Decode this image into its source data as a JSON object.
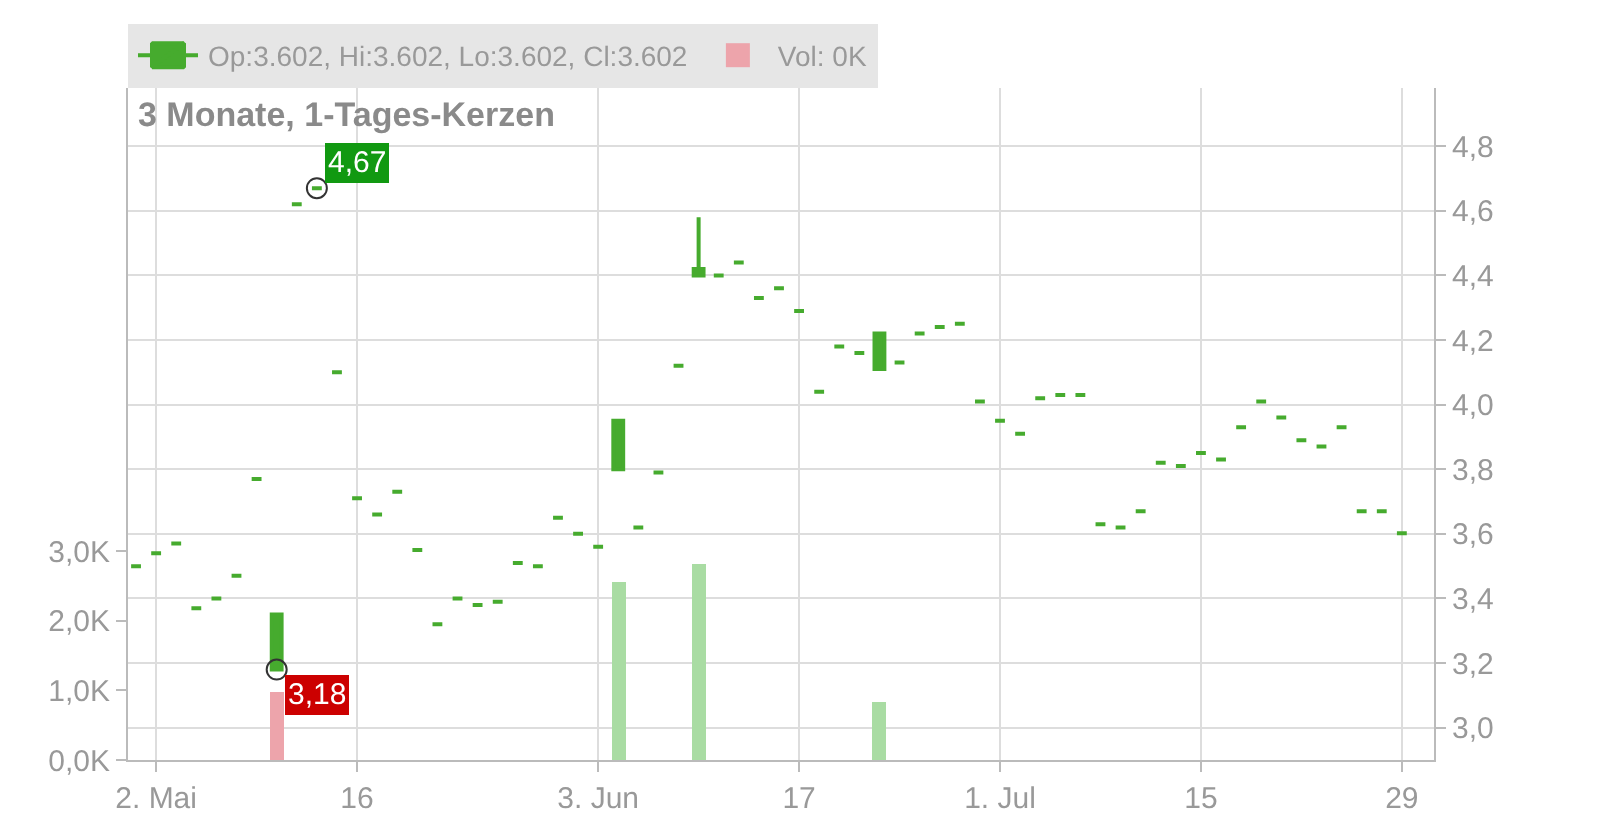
{
  "chart_data": {
    "type": "candlestick",
    "title": "3 Monate, 1-Tages-Kerzen",
    "categories": [
      null,
      "2. Mai",
      null,
      null,
      null,
      null,
      null,
      null,
      null,
      null,
      null,
      "16",
      null,
      null,
      null,
      null,
      null,
      null,
      null,
      null,
      null,
      null,
      null,
      "3. Jun",
      null,
      null,
      null,
      null,
      null,
      null,
      null,
      null,
      null,
      "17",
      null,
      null,
      null,
      null,
      null,
      null,
      null,
      null,
      null,
      "1. Jul",
      null,
      null,
      null,
      null,
      null,
      null,
      null,
      null,
      null,
      "15",
      null,
      null,
      null,
      null,
      null,
      null,
      null,
      null,
      null,
      "29"
    ],
    "series": [
      {
        "axis": "y2",
        "name": "Op:3.602, Hi:3.602, Lo:3.602, Cl:3.602",
        "color": "#46ab2e",
        "ohlc": [
          [
            3.5,
            3.5,
            3.5,
            3.5
          ],
          [
            3.54,
            3.54,
            3.54,
            3.54
          ],
          [
            3.57,
            3.57,
            3.57,
            3.57
          ],
          [
            3.37,
            3.37,
            3.37,
            3.37
          ],
          [
            3.4,
            3.4,
            3.4,
            3.4
          ],
          [
            3.47,
            3.47,
            3.47,
            3.47
          ],
          [
            3.77,
            3.77,
            3.77,
            3.77
          ],
          [
            3.18,
            3.35,
            3.18,
            3.35
          ],
          [
            4.62,
            4.62,
            4.62,
            4.62
          ],
          [
            4.67,
            4.67,
            4.67,
            4.67
          ],
          [
            4.1,
            4.1,
            4.1,
            4.1
          ],
          [
            3.71,
            3.71,
            3.71,
            3.71
          ],
          [
            3.66,
            3.66,
            3.66,
            3.66
          ],
          [
            3.73,
            3.73,
            3.73,
            3.73
          ],
          [
            3.55,
            3.55,
            3.55,
            3.55
          ],
          [
            3.32,
            3.32,
            3.32,
            3.32
          ],
          [
            3.4,
            3.4,
            3.4,
            3.4
          ],
          [
            3.38,
            3.38,
            3.38,
            3.38
          ],
          [
            3.39,
            3.39,
            3.39,
            3.39
          ],
          [
            3.51,
            3.51,
            3.51,
            3.51
          ],
          [
            3.5,
            3.5,
            3.5,
            3.5
          ],
          [
            3.65,
            3.65,
            3.65,
            3.65
          ],
          [
            3.6,
            3.6,
            3.6,
            3.6
          ],
          [
            3.56,
            3.56,
            3.56,
            3.56
          ],
          [
            3.8,
            3.95,
            3.8,
            3.95
          ],
          [
            3.62,
            3.62,
            3.62,
            3.62
          ],
          [
            3.79,
            3.79,
            3.79,
            3.79
          ],
          [
            4.12,
            4.12,
            4.12,
            4.12
          ],
          [
            4.4,
            4.58,
            4.4,
            4.42
          ],
          [
            4.4,
            4.4,
            4.4,
            4.4
          ],
          [
            4.44,
            4.44,
            4.44,
            4.44
          ],
          [
            4.33,
            4.33,
            4.33,
            4.33
          ],
          [
            4.36,
            4.36,
            4.36,
            4.36
          ],
          [
            4.29,
            4.29,
            4.29,
            4.29
          ],
          [
            4.04,
            4.04,
            4.04,
            4.04
          ],
          [
            4.18,
            4.18,
            4.18,
            4.18
          ],
          [
            4.16,
            4.16,
            4.16,
            4.16
          ],
          [
            4.11,
            4.22,
            4.11,
            4.22
          ],
          [
            4.13,
            4.13,
            4.13,
            4.13
          ],
          [
            4.22,
            4.22,
            4.22,
            4.22
          ],
          [
            4.24,
            4.24,
            4.24,
            4.24
          ],
          [
            4.25,
            4.25,
            4.25,
            4.25
          ],
          [
            4.01,
            4.01,
            4.01,
            4.01
          ],
          [
            3.95,
            3.95,
            3.95,
            3.95
          ],
          [
            3.91,
            3.91,
            3.91,
            3.91
          ],
          [
            4.02,
            4.02,
            4.02,
            4.02
          ],
          [
            4.03,
            4.03,
            4.03,
            4.03
          ],
          [
            4.03,
            4.03,
            4.03,
            4.03
          ],
          [
            3.63,
            3.63,
            3.63,
            3.63
          ],
          [
            3.62,
            3.62,
            3.62,
            3.62
          ],
          [
            3.67,
            3.67,
            3.67,
            3.67
          ],
          [
            3.82,
            3.82,
            3.82,
            3.82
          ],
          [
            3.81,
            3.81,
            3.81,
            3.81
          ],
          [
            3.85,
            3.85,
            3.85,
            3.85
          ],
          [
            3.83,
            3.83,
            3.83,
            3.83
          ],
          [
            3.93,
            3.93,
            3.93,
            3.93
          ],
          [
            4.01,
            4.01,
            4.01,
            4.01
          ],
          [
            3.96,
            3.96,
            3.96,
            3.96
          ],
          [
            3.89,
            3.89,
            3.89,
            3.89
          ],
          [
            3.87,
            3.87,
            3.87,
            3.87
          ],
          [
            3.93,
            3.93,
            3.93,
            3.93
          ],
          [
            3.67,
            3.67,
            3.67,
            3.67
          ],
          [
            3.67,
            3.67,
            3.67,
            3.67
          ],
          [
            3.602,
            3.602,
            3.602,
            3.602
          ]
        ]
      },
      {
        "type": "bar",
        "name": "Vol: 0K",
        "values": [
          null,
          null,
          null,
          null,
          null,
          null,
          null,
          970,
          null,
          null,
          null,
          null,
          null,
          null,
          null,
          null,
          null,
          null,
          null,
          null,
          null,
          null,
          null,
          null,
          2570,
          null,
          null,
          null,
          2810,
          null,
          null,
          null,
          null,
          null,
          null,
          null,
          null,
          840,
          null,
          null,
          null,
          null,
          null,
          null,
          null,
          null,
          null,
          null,
          null,
          null,
          null,
          null,
          null,
          null,
          null,
          null,
          null,
          null,
          null,
          null,
          null,
          null,
          null,
          null
        ],
        "colors": [
          "#eda4ab",
          "#eda4ab",
          "#eda4ab",
          "#eda4ab",
          "#eda4ab",
          "#eda4ab",
          "#eda4ab",
          "#eda4ab",
          "#a9dca3",
          "#a9dca3",
          "#a9dca3",
          "#a9dca3",
          "#a9dca3",
          "#a9dca3",
          "#a9dca3",
          "#a9dca3",
          "#a9dca3",
          "#a9dca3",
          "#a9dca3",
          "#a9dca3",
          "#a9dca3",
          "#a9dca3",
          "#a9dca3",
          "#a9dca3",
          "#a9dca3",
          "#a9dca3",
          "#a9dca3",
          "#a9dca3",
          "#a9dca3",
          "#a9dca3",
          "#a9dca3",
          "#a9dca3",
          "#a9dca3",
          "#a9dca3",
          "#a9dca3",
          "#a9dca3",
          "#a9dca3",
          "#a9dca3",
          "#a9dca3",
          "#a9dca3",
          "#a9dca3",
          "#a9dca3",
          "#a9dca3",
          "#a9dca3",
          "#a9dca3",
          "#a9dca3",
          "#a9dca3",
          "#a9dca3",
          "#a9dca3",
          "#a9dca3",
          "#a9dca3",
          "#a9dca3",
          "#a9dca3",
          "#a9dca3",
          "#a9dca3",
          "#a9dca3",
          "#a9dca3",
          "#a9dca3",
          "#a9dca3",
          "#a9dca3",
          "#a9dca3",
          "#a9dca3",
          "#a9dca3",
          "#a9dca3"
        ]
      }
    ],
    "annotations": [
      "4,67",
      "3,18"
    ],
    "ylim": [
      0,
      9650
    ],
    "yticks": [
      {
        "value": 0,
        "label": "0,0K"
      },
      {
        "value": 1000,
        "label": "1,0K"
      },
      {
        "value": 2000,
        "label": "2,0K"
      },
      {
        "value": 3000,
        "label": "3,0K"
      }
    ],
    "y2lim": [
      2.9,
      4.98
    ],
    "y2ticks": [
      {
        "value": 3.0,
        "label": "3,0"
      },
      {
        "value": 3.2,
        "label": "3,2"
      },
      {
        "value": 3.4,
        "label": "3,4"
      },
      {
        "value": 3.6,
        "label": "3,6"
      },
      {
        "value": 3.8,
        "label": "3,8"
      },
      {
        "value": 4.0,
        "label": "4,0"
      },
      {
        "value": 4.2,
        "label": "4,2"
      },
      {
        "value": 4.4,
        "label": "4,4"
      },
      {
        "value": 4.6,
        "label": "4,6"
      },
      {
        "value": 4.8,
        "label": "4,8"
      }
    ],
    "grid": true,
    "legend": "top left"
  }
}
